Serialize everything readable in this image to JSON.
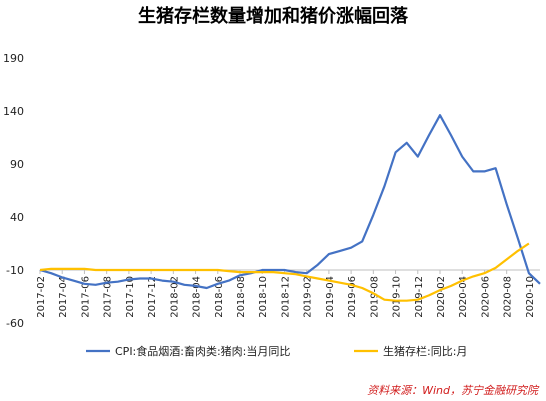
{
  "chart_data": {
    "type": "line",
    "title": "生猪存栏数量增加和猪价涨幅回落",
    "xlabel": "",
    "ylabel": "",
    "ylim": [
      -60,
      190
    ],
    "yticks": [
      190,
      140,
      90,
      40,
      -10,
      -60
    ],
    "grid": false,
    "legend_placement": "bottom",
    "x_tick_labels": [
      "2017-02",
      "2017-04",
      "2017-06",
      "2017-08",
      "2017-10",
      "2017-12",
      "2018-02",
      "2018-04",
      "2018-06",
      "2018-08",
      "2018-10",
      "2018-12",
      "2019-02",
      "2019-04",
      "2019-06",
      "2019-08",
      "2019-10",
      "2019-12",
      "2020-02",
      "2020-04",
      "2020-06",
      "2020-08",
      "2020-10"
    ],
    "x": [
      "2017-02",
      "2017-03",
      "2017-04",
      "2017-05",
      "2017-06",
      "2017-07",
      "2017-08",
      "2017-09",
      "2017-10",
      "2017-11",
      "2017-12",
      "2018-01",
      "2018-02",
      "2018-03",
      "2018-04",
      "2018-05",
      "2018-06",
      "2018-07",
      "2018-08",
      "2018-09",
      "2018-10",
      "2018-11",
      "2018-12",
      "2019-01",
      "2019-02",
      "2019-03",
      "2019-04",
      "2019-05",
      "2019-06",
      "2019-07",
      "2019-08",
      "2019-09",
      "2019-10",
      "2019-11",
      "2019-12",
      "2020-01",
      "2020-02",
      "2020-03",
      "2020-04",
      "2020-05",
      "2020-06",
      "2020-07",
      "2020-08",
      "2020-09",
      "2020-10",
      "2020-11"
    ],
    "series": [
      {
        "name": "CPI:食品烟酒:畜肉类:猪肉:当月同比",
        "color": "#4472c4",
        "values": [
          -10,
          -13,
          -17,
          -20,
          -23,
          -24,
          -22,
          -21,
          -19,
          -18,
          -18,
          -20,
          -21,
          -24,
          -25,
          -27,
          -23,
          -20,
          -15,
          -13,
          -10,
          -10,
          -10,
          -12,
          -13,
          -5,
          5,
          8,
          11,
          17,
          42,
          69,
          101,
          110,
          97,
          117,
          136,
          117,
          97,
          83,
          83,
          86,
          52,
          20,
          -13,
          -23
        ]
      },
      {
        "name": "生猪存栏:同比:月",
        "color": "#ffc000",
        "values": [
          -10,
          -9,
          -9,
          -9,
          -9,
          -10,
          -10,
          -10,
          -10,
          -10,
          -10,
          -10,
          -10,
          -10,
          -10,
          -10,
          -10,
          -11,
          -12,
          -12,
          -12,
          -12,
          -13,
          -14,
          -16,
          -18,
          -20,
          -22,
          -24,
          -27,
          -32,
          -38,
          -39,
          -39,
          -38,
          -34,
          -29,
          -25,
          -20,
          -16,
          -13,
          -8,
          0,
          8,
          15,
          null
        ]
      }
    ]
  },
  "legend": {
    "items": [
      {
        "label": "CPI:食品烟酒:畜肉类:猪肉:当月同比",
        "color": "#4472c4"
      },
      {
        "label": "生猪存栏:同比:月",
        "color": "#ffc000"
      }
    ]
  },
  "source_note": "资料来源：Wind，苏宁金融研究院"
}
